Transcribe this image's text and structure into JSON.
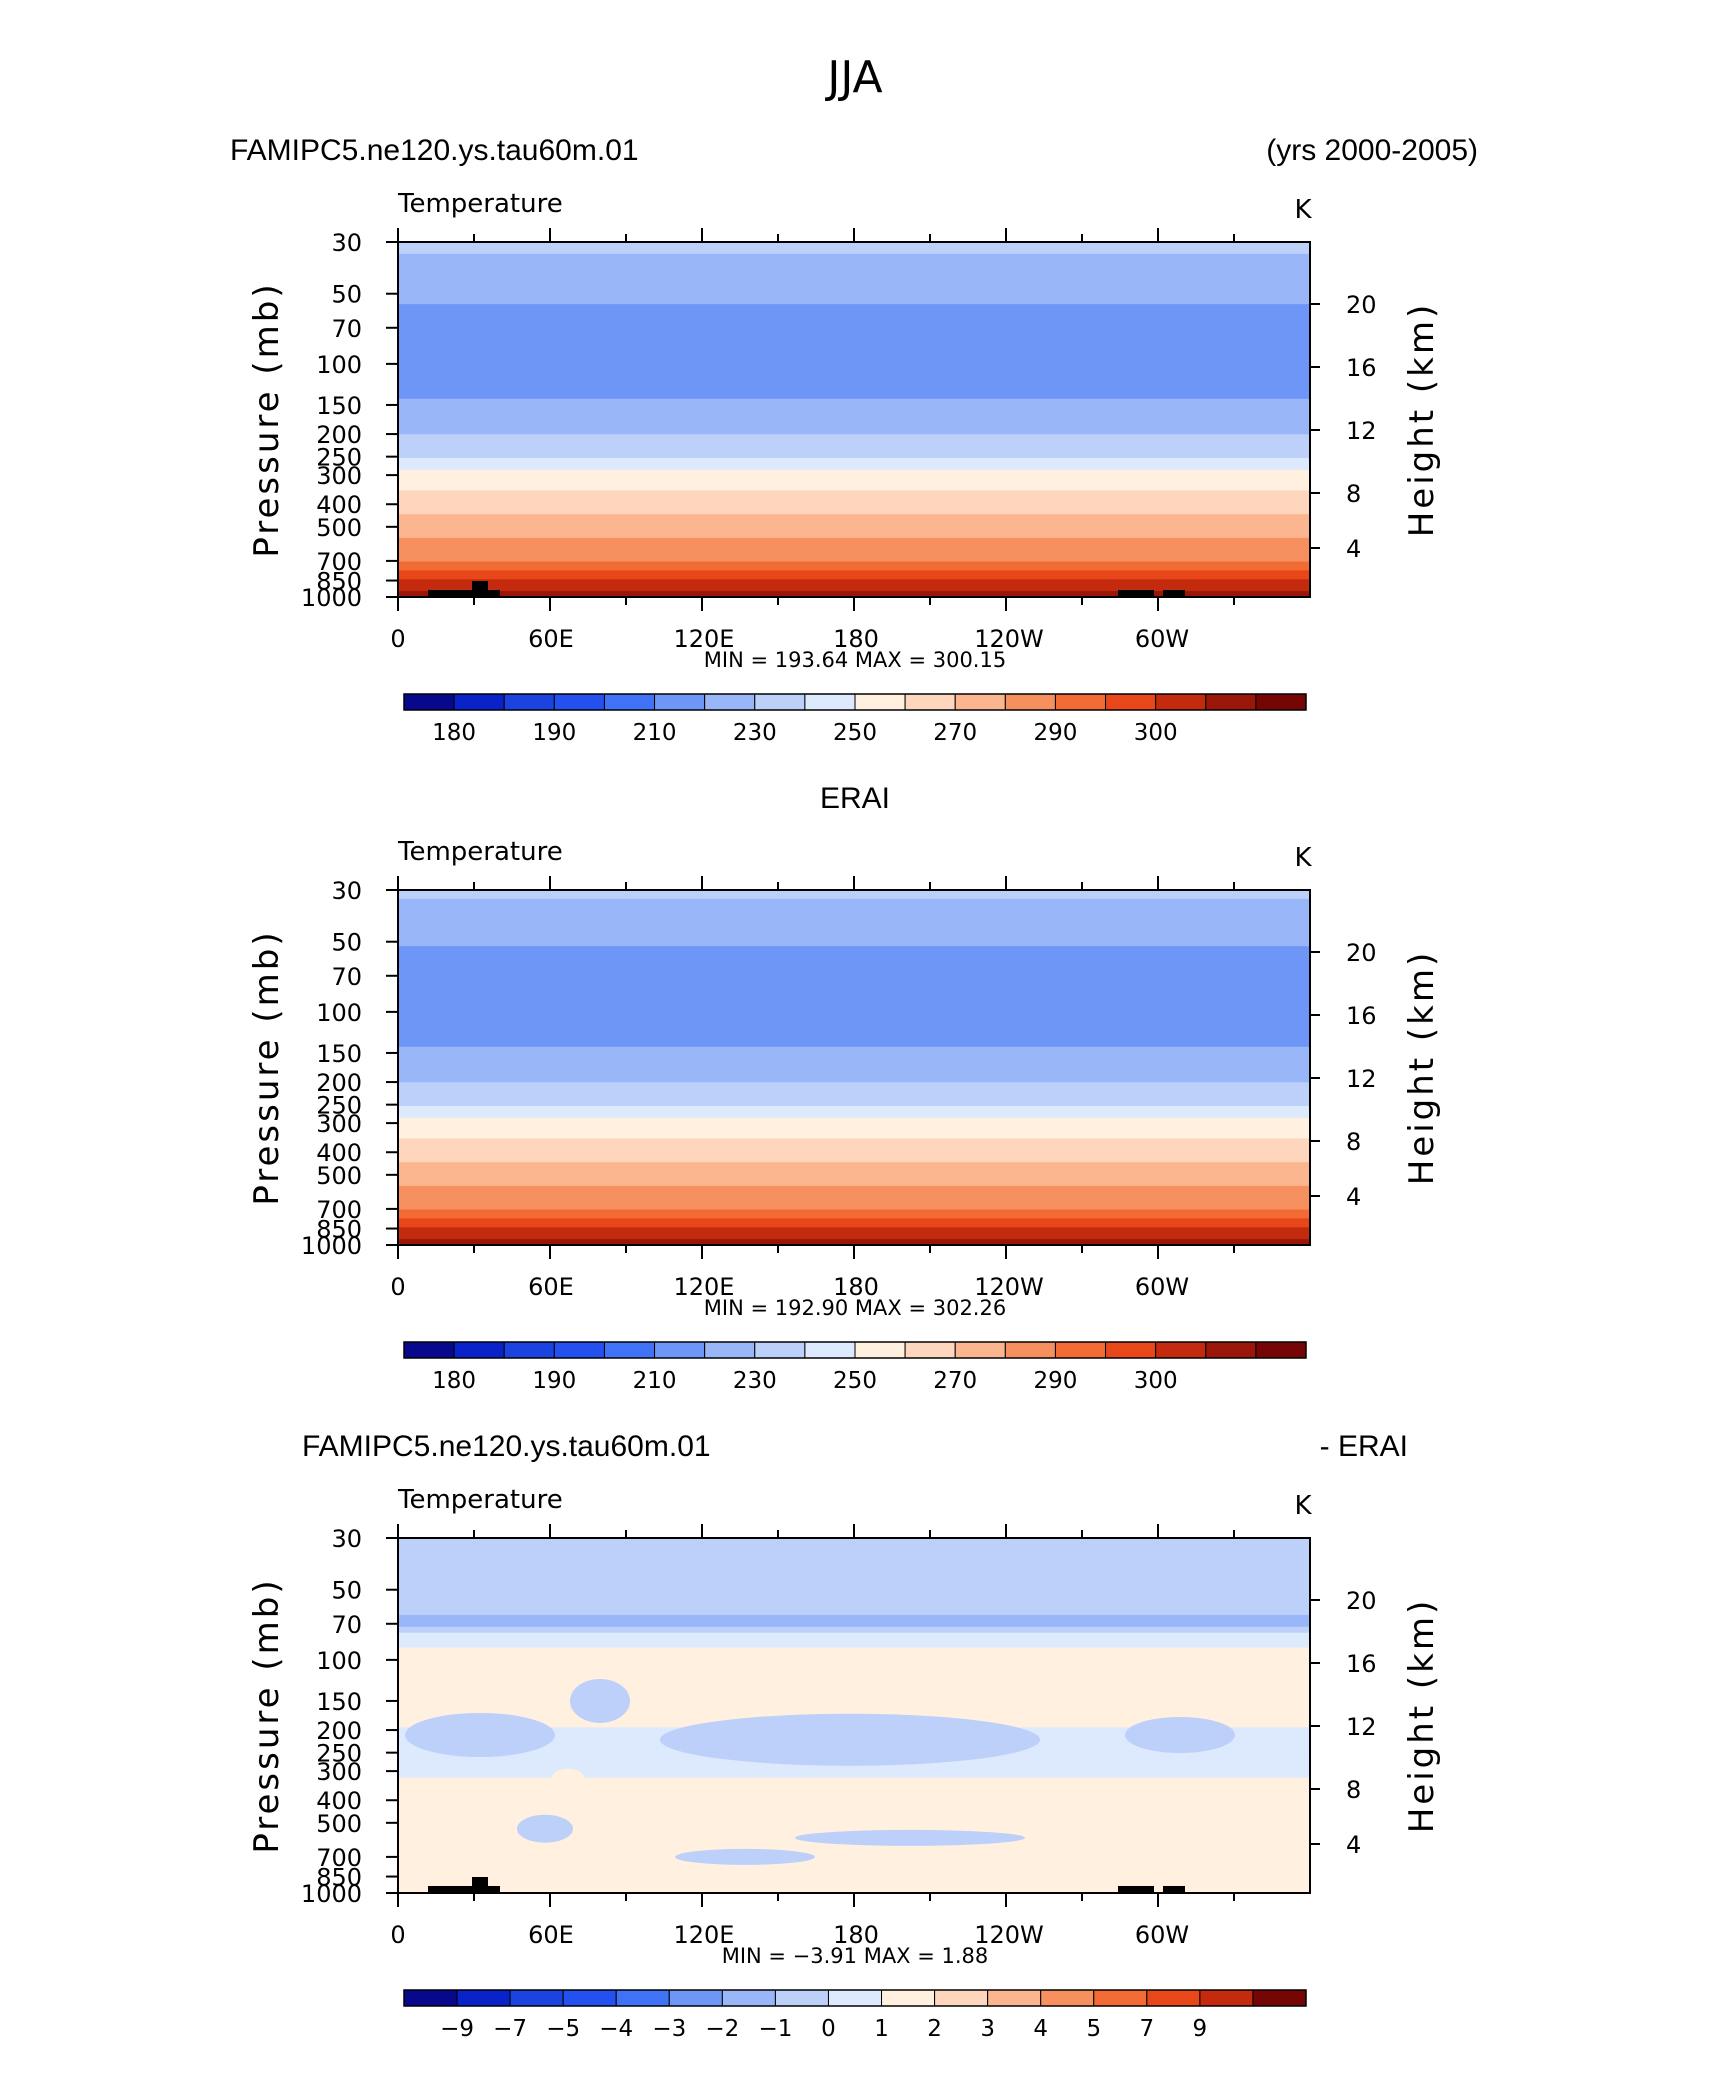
{
  "figure_title": "JJA",
  "colors": {
    "temp_levels": [
      "#08088c",
      "#0a22c9",
      "#1a43e0",
      "#2450f0",
      "#3f72f5",
      "#6e96f7",
      "#98b6f8",
      "#bdd0fa",
      "#dde9fc",
      "#fff0e0",
      "#fdd6bd",
      "#fbb690",
      "#f7905f",
      "#f26b34",
      "#e8471a",
      "#c42a0d",
      "#9a1609",
      "#760505"
    ],
    "diff_levels": [
      "#08088c",
      "#0a22c9",
      "#1a43e0",
      "#2450f0",
      "#3f72f5",
      "#6e96f7",
      "#98b6f8",
      "#bdd0fa",
      "#dde9fc",
      "#fff0e0",
      "#fdd6bd",
      "#fbb690",
      "#f7905f",
      "#f26b34",
      "#e8471a",
      "#c42a0d",
      "#760505"
    ],
    "land": "#000000"
  },
  "chart_data": [
    {
      "type": "heatmap",
      "id": "model",
      "header_left": "FAMIPC5.ne120.ys.tau60m.01",
      "header_right": "(yrs 2000-2005)",
      "subtitle": "Temperature",
      "units": "K",
      "ylabel_left": "Pressure (mb)",
      "ylabel_right": "Height (km)",
      "pressure_ticks": [
        "30",
        "50",
        "70",
        "100",
        "150",
        "200",
        "250",
        "300",
        "400",
        "500",
        "700",
        "850",
        "1000"
      ],
      "height_ticks": [
        "20",
        "16",
        "12",
        "8",
        "4"
      ],
      "x_ticks": [
        "0",
        "60E",
        "120E",
        "180",
        "120W",
        "60W"
      ],
      "stats": "MIN =  193.64   MAX =  300.15",
      "colorbar_labels": [
        "180",
        "190",
        "210",
        "230",
        "250",
        "270",
        "290",
        "300"
      ],
      "profile": [
        {
          "p": 30,
          "v": 225
        },
        {
          "p": 40,
          "v": 214
        },
        {
          "p": 50,
          "v": 212
        },
        {
          "p": 70,
          "v": 205
        },
        {
          "p": 100,
          "v": 201
        },
        {
          "p": 130,
          "v": 208
        },
        {
          "p": 150,
          "v": 212
        },
        {
          "p": 200,
          "v": 220
        },
        {
          "p": 250,
          "v": 230
        },
        {
          "p": 300,
          "v": 243
        },
        {
          "p": 400,
          "v": 256
        },
        {
          "p": 500,
          "v": 265
        },
        {
          "p": 700,
          "v": 280
        },
        {
          "p": 850,
          "v": 290
        },
        {
          "p": 1000,
          "v": 297
        }
      ]
    },
    {
      "type": "heatmap",
      "id": "obs",
      "header_center": "ERAI",
      "subtitle": "Temperature",
      "units": "K",
      "ylabel_left": "Pressure (mb)",
      "ylabel_right": "Height (km)",
      "pressure_ticks": [
        "30",
        "50",
        "70",
        "100",
        "150",
        "200",
        "250",
        "300",
        "400",
        "500",
        "700",
        "850",
        "1000"
      ],
      "height_ticks": [
        "20",
        "16",
        "12",
        "8",
        "4"
      ],
      "x_ticks": [
        "0",
        "60E",
        "120E",
        "180",
        "120W",
        "60W"
      ],
      "stats": "MIN =  192.90   MAX =  302.26",
      "colorbar_labels": [
        "180",
        "190",
        "210",
        "230",
        "250",
        "270",
        "290",
        "300"
      ],
      "profile": [
        {
          "p": 30,
          "v": 223
        },
        {
          "p": 40,
          "v": 214
        },
        {
          "p": 50,
          "v": 211
        },
        {
          "p": 70,
          "v": 205
        },
        {
          "p": 100,
          "v": 201
        },
        {
          "p": 130,
          "v": 208
        },
        {
          "p": 150,
          "v": 212
        },
        {
          "p": 200,
          "v": 220
        },
        {
          "p": 250,
          "v": 230
        },
        {
          "p": 300,
          "v": 244
        },
        {
          "p": 400,
          "v": 256
        },
        {
          "p": 500,
          "v": 265
        },
        {
          "p": 700,
          "v": 280
        },
        {
          "p": 850,
          "v": 291
        },
        {
          "p": 1000,
          "v": 298
        }
      ]
    },
    {
      "type": "heatmap",
      "id": "diff",
      "header_left": "FAMIPC5.ne120.ys.tau60m.01",
      "header_right": "- ERAI",
      "subtitle": "Temperature",
      "units": "K",
      "ylabel_left": "Pressure (mb)",
      "ylabel_right": "Height (km)",
      "pressure_ticks": [
        "30",
        "50",
        "70",
        "100",
        "150",
        "200",
        "250",
        "300",
        "400",
        "500",
        "700",
        "850",
        "1000"
      ],
      "height_ticks": [
        "20",
        "16",
        "12",
        "8",
        "4"
      ],
      "x_ticks": [
        "0",
        "60E",
        "120E",
        "180",
        "120W",
        "60W"
      ],
      "stats": "MIN =    −3.91   MAX =     1.88",
      "colorbar_labels": [
        "−9",
        "−7",
        "−5",
        "−4",
        "−3",
        "−2",
        "−1",
        "0",
        "1",
        "2",
        "3",
        "4",
        "5",
        "7",
        "9"
      ],
      "profile": [
        {
          "p": 30,
          "v": -2.5
        },
        {
          "p": 60,
          "v": -2.5
        },
        {
          "p": 70,
          "v": -3.5
        },
        {
          "p": 80,
          "v": -1.5
        },
        {
          "p": 100,
          "v": -0.5
        },
        {
          "p": 150,
          "v": -0.5
        },
        {
          "p": 250,
          "v": -1.5
        },
        {
          "p": 400,
          "v": -0.5
        },
        {
          "p": 1000,
          "v": -0.5
        }
      ]
    }
  ]
}
